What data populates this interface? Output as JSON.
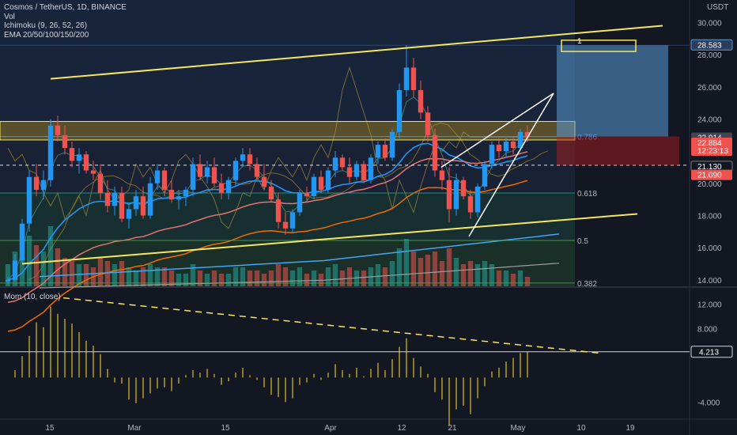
{
  "legend": {
    "title": "Cosmos / TetherUS, 1D, BINANCE",
    "vol": "Vol",
    "ichimoku": "Ichimoku (9, 26, 52, 26)",
    "ema": "EMA 20/50/100/150/200",
    "mom": "Mom (10, close)"
  },
  "currency": "USDT",
  "colors": {
    "up": "#26a69a",
    "down": "#ef5350",
    "upLight": "#2962ff",
    "ema20": "#2196f3",
    "ema50": "#e57373",
    "ema100": "#ef6c00",
    "ema150": "#42a5f5",
    "ema200": "#9e9e9e",
    "trend": "#f5e663",
    "momentum": "#c9b227",
    "fib786": "#4a90d9",
    "fib618": "#26a69a",
    "fib5": "#4caf50"
  },
  "chart_data": [
    {
      "type": "candlestick",
      "title": "Cosmos / TetherUS, 1D, BINANCE",
      "y_ticks": [
        "30.000",
        "28.000",
        "26.000",
        "24.000",
        "22.000",
        "20.000",
        "18.000",
        "16.000",
        "14.000"
      ],
      "y_values": [
        30,
        28,
        26,
        24,
        22,
        20,
        18,
        16,
        14
      ],
      "ylim": [
        13.6,
        31.4
      ],
      "x_ticks": [
        "15",
        "Mar",
        "15",
        "Apr",
        "12",
        "21",
        "May",
        "10",
        "19"
      ],
      "price_tags": [
        {
          "label": "28.583",
          "value": 28.583,
          "kind": "target"
        },
        {
          "label": "22.914",
          "value": 22.914,
          "kind": "current"
        },
        {
          "label": "22.884",
          "value": 22.884,
          "kind": "last"
        },
        {
          "label": "12:23:13",
          "value": 22.45,
          "kind": "countdown"
        },
        {
          "label": "21.130",
          "value": 21.13,
          "kind": "line"
        },
        {
          "label": "21.090",
          "value": 21.09,
          "kind": "ema"
        }
      ],
      "fib_levels": [
        {
          "label": "0.786",
          "value": 22.914
        },
        {
          "label": "0.618",
          "value": 19.4
        },
        {
          "label": "0.5",
          "value": 16.45
        },
        {
          "label": "0.382",
          "value": 13.8
        }
      ],
      "ohlc": [
        [
          13.9,
          14.2,
          13.7,
          14.0
        ],
        [
          14.0,
          15.6,
          13.9,
          15.2
        ],
        [
          15.2,
          17.8,
          15.0,
          17.5
        ],
        [
          17.5,
          20.8,
          17.0,
          20.4
        ],
        [
          20.4,
          21.2,
          19.2,
          19.6
        ],
        [
          19.6,
          20.8,
          19.0,
          20.2
        ],
        [
          20.2,
          24.0,
          19.8,
          23.6
        ],
        [
          23.6,
          24.2,
          22.6,
          23.0
        ],
        [
          23.0,
          23.6,
          21.8,
          22.2
        ],
        [
          22.2,
          22.6,
          21.0,
          21.4
        ],
        [
          21.4,
          22.2,
          20.6,
          21.8
        ],
        [
          21.8,
          22.0,
          20.6,
          20.8
        ],
        [
          20.8,
          21.4,
          20.2,
          20.6
        ],
        [
          20.6,
          21.2,
          19.0,
          19.4
        ],
        [
          19.4,
          20.2,
          18.2,
          18.6
        ],
        [
          18.6,
          19.8,
          18.0,
          19.4
        ],
        [
          19.4,
          19.8,
          17.6,
          17.8
        ],
        [
          17.8,
          18.8,
          17.2,
          18.4
        ],
        [
          18.4,
          19.6,
          18.0,
          19.2
        ],
        [
          19.2,
          19.8,
          17.8,
          18.0
        ],
        [
          18.0,
          20.4,
          17.8,
          20.0
        ],
        [
          20.0,
          21.2,
          19.6,
          20.8
        ],
        [
          20.8,
          21.0,
          19.2,
          19.6
        ],
        [
          19.6,
          20.2,
          18.8,
          19.0
        ],
        [
          19.0,
          19.6,
          18.4,
          19.2
        ],
        [
          19.2,
          19.8,
          18.6,
          19.6
        ],
        [
          19.6,
          21.6,
          19.2,
          21.2
        ],
        [
          21.2,
          21.8,
          20.2,
          20.4
        ],
        [
          20.4,
          21.4,
          20.0,
          21.0
        ],
        [
          21.0,
          21.6,
          19.8,
          20.0
        ],
        [
          20.0,
          20.6,
          19.0,
          19.4
        ],
        [
          19.4,
          20.4,
          19.0,
          20.2
        ],
        [
          20.2,
          21.6,
          19.8,
          21.4
        ],
        [
          21.4,
          22.2,
          21.0,
          21.8
        ],
        [
          21.8,
          22.2,
          20.8,
          21.2
        ],
        [
          21.2,
          21.6,
          20.2,
          20.4
        ],
        [
          20.4,
          21.2,
          19.6,
          19.8
        ],
        [
          19.8,
          20.2,
          18.8,
          19.0
        ],
        [
          19.0,
          19.4,
          17.2,
          17.6
        ],
        [
          17.6,
          18.2,
          16.8,
          17.2
        ],
        [
          17.2,
          18.4,
          16.9,
          18.2
        ],
        [
          18.2,
          19.6,
          18.0,
          19.4
        ],
        [
          19.4,
          19.8,
          18.8,
          19.2
        ],
        [
          19.2,
          20.6,
          19.0,
          20.4
        ],
        [
          20.4,
          20.8,
          19.4,
          19.6
        ],
        [
          19.6,
          21.0,
          19.4,
          20.8
        ],
        [
          20.8,
          22.0,
          20.4,
          21.6
        ],
        [
          21.6,
          21.8,
          20.8,
          21.0
        ],
        [
          21.0,
          21.6,
          20.0,
          20.4
        ],
        [
          20.4,
          21.4,
          20.2,
          21.2
        ],
        [
          21.2,
          21.4,
          20.0,
          20.2
        ],
        [
          20.2,
          21.8,
          20.0,
          21.6
        ],
        [
          21.6,
          22.6,
          21.2,
          22.4
        ],
        [
          22.4,
          22.8,
          21.4,
          21.6
        ],
        [
          21.6,
          23.4,
          21.4,
          23.2
        ],
        [
          23.2,
          26.2,
          22.8,
          25.8
        ],
        [
          25.8,
          28.6,
          25.4,
          27.2
        ],
        [
          27.2,
          27.8,
          25.4,
          25.8
        ],
        [
          25.8,
          26.4,
          24.0,
          24.4
        ],
        [
          24.4,
          24.8,
          22.6,
          23.0
        ],
        [
          23.0,
          23.4,
          20.4,
          20.8
        ],
        [
          20.8,
          21.4,
          19.6,
          20.2
        ],
        [
          20.2,
          21.0,
          17.6,
          18.4
        ],
        [
          18.4,
          20.6,
          18.0,
          20.2
        ],
        [
          20.2,
          20.4,
          19.0,
          19.2
        ],
        [
          19.2,
          19.6,
          17.8,
          18.2
        ],
        [
          18.2,
          20.0,
          17.9,
          19.8
        ],
        [
          19.8,
          21.4,
          19.6,
          21.2
        ],
        [
          21.2,
          22.6,
          20.9,
          22.4
        ],
        [
          22.4,
          22.8,
          21.6,
          22.0
        ],
        [
          22.0,
          22.8,
          21.6,
          22.6
        ],
        [
          22.6,
          22.9,
          21.8,
          22.2
        ],
        [
          22.2,
          23.4,
          22.0,
          23.2
        ],
        [
          23.2,
          23.6,
          22.6,
          22.88
        ]
      ],
      "volume": [
        [
          1,
          0.35
        ],
        [
          1,
          0.55
        ],
        [
          1,
          0.75
        ],
        [
          1,
          0.8
        ],
        [
          0,
          0.65
        ],
        [
          1,
          0.55
        ],
        [
          1,
          0.95
        ],
        [
          0,
          0.6
        ],
        [
          0,
          0.45
        ],
        [
          0,
          0.4
        ],
        [
          1,
          0.35
        ],
        [
          0,
          0.35
        ],
        [
          0,
          0.3
        ],
        [
          0,
          0.45
        ],
        [
          0,
          0.4
        ],
        [
          1,
          0.35
        ],
        [
          0,
          0.4
        ],
        [
          1,
          0.3
        ],
        [
          1,
          0.25
        ],
        [
          0,
          0.3
        ],
        [
          1,
          0.35
        ],
        [
          1,
          0.3
        ],
        [
          0,
          0.3
        ],
        [
          0,
          0.25
        ],
        [
          1,
          0.2
        ],
        [
          1,
          0.2
        ],
        [
          1,
          0.35
        ],
        [
          0,
          0.25
        ],
        [
          1,
          0.2
        ],
        [
          0,
          0.25
        ],
        [
          0,
          0.2
        ],
        [
          1,
          0.2
        ],
        [
          1,
          0.3
        ],
        [
          1,
          0.3
        ],
        [
          0,
          0.25
        ],
        [
          0,
          0.25
        ],
        [
          0,
          0.2
        ],
        [
          0,
          0.25
        ],
        [
          0,
          0.35
        ],
        [
          0,
          0.3
        ],
        [
          1,
          0.25
        ],
        [
          1,
          0.3
        ],
        [
          0,
          0.2
        ],
        [
          1,
          0.25
        ],
        [
          0,
          0.2
        ],
        [
          1,
          0.3
        ],
        [
          1,
          0.35
        ],
        [
          0,
          0.25
        ],
        [
          0,
          0.3
        ],
        [
          1,
          0.25
        ],
        [
          0,
          0.25
        ],
        [
          1,
          0.3
        ],
        [
          1,
          0.35
        ],
        [
          0,
          0.3
        ],
        [
          1,
          0.4
        ],
        [
          1,
          0.6
        ],
        [
          1,
          0.75
        ],
        [
          0,
          0.55
        ],
        [
          0,
          0.45
        ],
        [
          0,
          0.5
        ],
        [
          0,
          0.55
        ],
        [
          0,
          0.4
        ],
        [
          0,
          0.6
        ],
        [
          1,
          0.45
        ],
        [
          0,
          0.35
        ],
        [
          0,
          0.4
        ],
        [
          1,
          0.35
        ],
        [
          1,
          0.4
        ],
        [
          1,
          0.35
        ],
        [
          0,
          0.25
        ],
        [
          1,
          0.25
        ],
        [
          0,
          0.2
        ],
        [
          1,
          0.25
        ],
        [
          0,
          0.15
        ]
      ],
      "momentum_ticks": [
        "12.000",
        "8.000",
        "4.000",
        "-4.000"
      ],
      "momentum_tick_values": [
        12,
        8,
        4,
        -4
      ],
      "momentum_current": {
        "label": "4.213",
        "value": 4.213
      },
      "momentum": [
        0,
        1.2,
        3.5,
        6.8,
        9.0,
        8.2,
        11.6,
        10.4,
        9.6,
        8.8,
        7.4,
        6.0,
        5.2,
        3.8,
        1.4,
        -0.8,
        -1.0,
        -3.6,
        -4.2,
        -3.4,
        -2.6,
        -1.8,
        -1.6,
        -2.2,
        -1.0,
        0.4,
        1.2,
        0.8,
        1.4,
        0.6,
        -1.2,
        -0.6,
        0.8,
        1.6,
        0.4,
        -0.4,
        -1.6,
        -2.8,
        -3.2,
        -4.0,
        -3.4,
        -1.2,
        -0.8,
        0.6,
        -0.4,
        0.8,
        2.2,
        1.2,
        0.6,
        1.6,
        0.2,
        1.4,
        2.4,
        1.2,
        3.0,
        5.0,
        6.4,
        3.2,
        1.8,
        0.6,
        -2.4,
        -3.6,
        -7.8,
        -5.2,
        -4.6,
        -6.0,
        -3.4,
        -1.4,
        1.0,
        1.6,
        2.6,
        3.2,
        4.0,
        4.213
      ]
    }
  ]
}
